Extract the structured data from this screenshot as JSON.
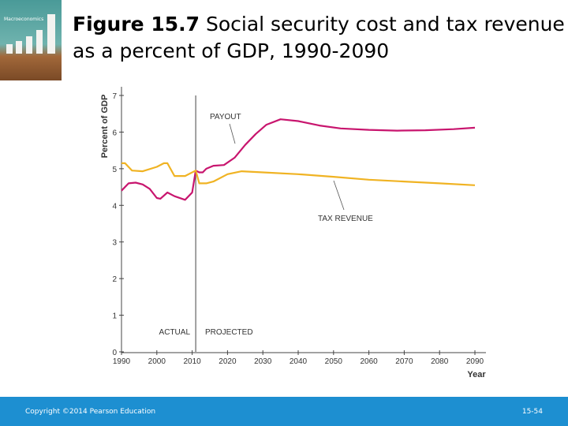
{
  "slide": {
    "title_bold": "Figure 15.7",
    "title_rest": " Social security cost and tax revenue as a percent of GDP, 1990-2090",
    "cover_title": "Macroeconomics",
    "footer_left": "Copyright ©2014 Pearson Education",
    "footer_right": "15-54"
  },
  "chart_data": {
    "type": "line",
    "title": "",
    "xlabel": "Year",
    "ylabel": "Percent of GDP",
    "xlim": [
      1990,
      2090
    ],
    "ylim": [
      0,
      7
    ],
    "xticks": [
      1990,
      2000,
      2010,
      2020,
      2030,
      2040,
      2050,
      2060,
      2070,
      2080,
      2090
    ],
    "yticks": [
      0,
      1,
      2,
      3,
      4,
      5,
      6,
      7
    ],
    "grid": false,
    "divider_year": 2011,
    "annotations": [
      "ACTUAL",
      "PROJECTED"
    ],
    "series": [
      {
        "name": "PAYOUT",
        "color": "#c8156e",
        "x": [
          1990,
          1992,
          1994,
          1996,
          1998,
          2000,
          2001,
          2003,
          2005,
          2008,
          2010,
          2011,
          2012,
          2013,
          2014,
          2016,
          2019,
          2022,
          2025,
          2028,
          2031,
          2035,
          2040,
          2046,
          2052,
          2060,
          2068,
          2076,
          2084,
          2090
        ],
        "y": [
          4.4,
          4.6,
          4.62,
          4.57,
          4.45,
          4.2,
          4.18,
          4.35,
          4.25,
          4.15,
          4.35,
          4.95,
          4.9,
          4.9,
          5.0,
          5.08,
          5.1,
          5.3,
          5.65,
          5.95,
          6.2,
          6.35,
          6.3,
          6.18,
          6.1,
          6.06,
          6.04,
          6.05,
          6.08,
          6.12
        ]
      },
      {
        "name": "TAX REVENUE",
        "color": "#f0b323",
        "x": [
          1990,
          1991,
          1993,
          1996,
          2000,
          2002,
          2003,
          2005,
          2008,
          2011,
          2012,
          2014,
          2016,
          2020,
          2024,
          2030,
          2040,
          2050,
          2060,
          2070,
          2080,
          2090
        ],
        "y": [
          5.15,
          5.15,
          4.95,
          4.93,
          5.05,
          5.15,
          5.15,
          4.8,
          4.8,
          4.95,
          4.6,
          4.6,
          4.65,
          4.85,
          4.93,
          4.9,
          4.85,
          4.78,
          4.7,
          4.65,
          4.6,
          4.55
        ]
      }
    ]
  }
}
